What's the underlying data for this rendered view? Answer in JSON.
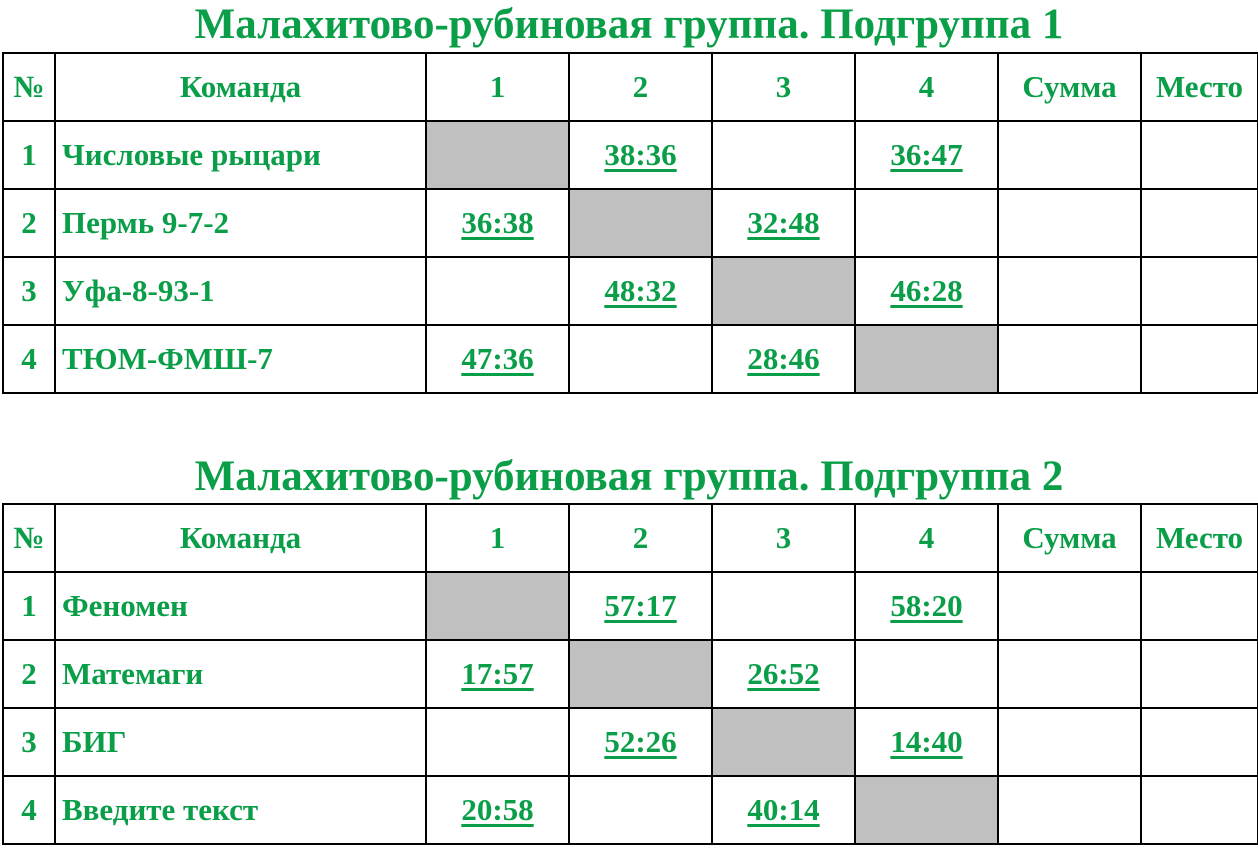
{
  "colors": {
    "text": "#0a9e48",
    "diagonal": "#c0c0c0",
    "border": "#000000"
  },
  "headers": {
    "num": "№",
    "team": "Команда",
    "cols": [
      "1",
      "2",
      "3",
      "4"
    ],
    "sum": "Сумма",
    "place": "Место"
  },
  "groups": [
    {
      "title": "Малахитово-рубиновая группа. Подгруппа 1",
      "rows": [
        {
          "num": "1",
          "team": "Числовые рыцари",
          "scores": [
            null,
            "38:36",
            "",
            "36:47"
          ],
          "sum": "",
          "place": ""
        },
        {
          "num": "2",
          "team": "Пермь 9-7-2",
          "scores": [
            "36:38",
            null,
            "32:48",
            ""
          ],
          "sum": "",
          "place": ""
        },
        {
          "num": "3",
          "team": "Уфа-8-93-1",
          "scores": [
            "",
            "48:32",
            null,
            "46:28"
          ],
          "sum": "",
          "place": ""
        },
        {
          "num": "4",
          "team": "ТЮМ-ФМШ-7",
          "scores": [
            "47:36",
            "",
            "28:46",
            null
          ],
          "sum": "",
          "place": ""
        }
      ]
    },
    {
      "title": "Малахитово-рубиновая группа. Подгруппа 2",
      "rows": [
        {
          "num": "1",
          "team": "Феномен",
          "scores": [
            null,
            "57:17",
            "",
            "58:20"
          ],
          "sum": "",
          "place": ""
        },
        {
          "num": "2",
          "team": "Матемаги",
          "scores": [
            "17:57",
            null,
            "26:52",
            ""
          ],
          "sum": "",
          "place": ""
        },
        {
          "num": "3",
          "team": "БИГ",
          "scores": [
            "",
            "52:26",
            null,
            "14:40"
          ],
          "sum": "",
          "place": ""
        },
        {
          "num": "4",
          "team": "Введите текст",
          "scores": [
            "20:58",
            "",
            "40:14",
            null
          ],
          "sum": "",
          "place": ""
        }
      ]
    }
  ]
}
